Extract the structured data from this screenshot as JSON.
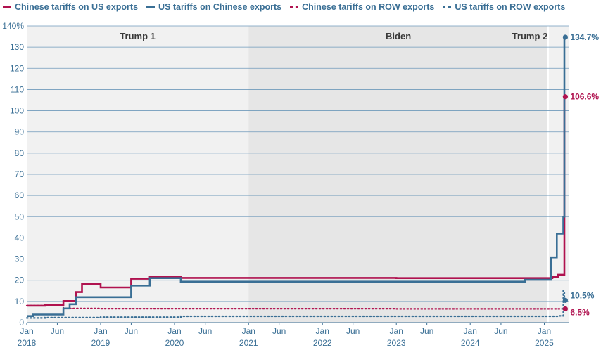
{
  "legend": [
    {
      "label": "Chinese tariffs on US exports",
      "color": "#b0124f",
      "style": "solid"
    },
    {
      "label": "US tariffs on Chinese exports",
      "color": "#3a6f95",
      "style": "solid"
    },
    {
      "label": "Chinese tariffs on ROW exports",
      "color": "#b0124f",
      "style": "dotted"
    },
    {
      "label": "US tariffs on ROW exports",
      "color": "#3a6f95",
      "style": "dotted"
    }
  ],
  "chart_data": {
    "type": "line",
    "line_shape": "step",
    "x_axis": {
      "range": [
        "2018-01-01",
        "2025-05-01"
      ],
      "ticks": [
        {
          "date": "2018-01-01",
          "label": "Jan",
          "sublabel": "2018"
        },
        {
          "date": "2018-06-01",
          "label": "Jun",
          "sublabel": ""
        },
        {
          "date": "2019-01-01",
          "label": "Jan",
          "sublabel": "2019"
        },
        {
          "date": "2019-06-01",
          "label": "Jun",
          "sublabel": ""
        },
        {
          "date": "2020-01-01",
          "label": "Jan",
          "sublabel": "2020"
        },
        {
          "date": "2020-06-01",
          "label": "Jun",
          "sublabel": ""
        },
        {
          "date": "2021-01-01",
          "label": "Jan",
          "sublabel": "2021"
        },
        {
          "date": "2021-06-01",
          "label": "Jun",
          "sublabel": ""
        },
        {
          "date": "2022-01-01",
          "label": "Jan",
          "sublabel": "2022"
        },
        {
          "date": "2022-06-01",
          "label": "Jun",
          "sublabel": ""
        },
        {
          "date": "2023-01-01",
          "label": "Jan",
          "sublabel": "2023"
        },
        {
          "date": "2023-06-01",
          "label": "Jun",
          "sublabel": ""
        },
        {
          "date": "2024-01-01",
          "label": "Jan",
          "sublabel": "2024"
        },
        {
          "date": "2024-06-01",
          "label": "Jun",
          "sublabel": ""
        },
        {
          "date": "2025-01-01",
          "label": "Jan",
          "sublabel": "2025"
        }
      ]
    },
    "y_axis": {
      "range": [
        0,
        140
      ],
      "ticks": [
        {
          "value": 0,
          "label": "0"
        },
        {
          "value": 10,
          "label": "10"
        },
        {
          "value": 20,
          "label": "20"
        },
        {
          "value": 30,
          "label": "30"
        },
        {
          "value": 40,
          "label": "40"
        },
        {
          "value": 50,
          "label": "50"
        },
        {
          "value": 60,
          "label": "60"
        },
        {
          "value": 70,
          "label": "70"
        },
        {
          "value": 80,
          "label": "80"
        },
        {
          "value": 90,
          "label": "90"
        },
        {
          "value": 100,
          "label": "100"
        },
        {
          "value": 110,
          "label": "110"
        },
        {
          "value": 120,
          "label": "120"
        },
        {
          "value": 130,
          "label": "130"
        },
        {
          "value": 140,
          "label": "140%"
        }
      ]
    },
    "grid": true,
    "periods": [
      {
        "label": "Trump 1",
        "start": "2018-01-01",
        "end": "2021-01-01",
        "color": "#f1f1f1"
      },
      {
        "label": "Biden",
        "start": "2021-01-01",
        "end": "2025-01-20",
        "color": "#e6e6e6"
      },
      {
        "label": "Trump 2",
        "start": "2025-01-20",
        "end": "2025-05-01",
        "color": "#f1f1f1"
      }
    ],
    "series": [
      {
        "name": "Chinese tariffs on US exports",
        "color": "#b0124f",
        "style": "solid",
        "end_label": "106.6%",
        "points": [
          [
            "2018-01-01",
            8.0
          ],
          [
            "2018-04-01",
            8.4
          ],
          [
            "2018-07-01",
            10.2
          ],
          [
            "2018-09-01",
            14.4
          ],
          [
            "2018-10-01",
            18.3
          ],
          [
            "2019-01-01",
            16.6
          ],
          [
            "2019-06-01",
            20.7
          ],
          [
            "2019-09-01",
            21.8
          ],
          [
            "2020-02-01",
            21.1
          ],
          [
            "2023-01-01",
            21.0
          ],
          [
            "2025-02-10",
            21.6
          ],
          [
            "2025-03-10",
            22.6
          ],
          [
            "2025-04-10",
            106.6
          ],
          [
            "2025-04-15",
            106.6
          ]
        ]
      },
      {
        "name": "US tariffs on Chinese exports",
        "color": "#3a6f95",
        "style": "solid",
        "end_label": "134.7%",
        "points": [
          [
            "2018-01-01",
            3.1
          ],
          [
            "2018-02-01",
            3.8
          ],
          [
            "2018-07-01",
            6.7
          ],
          [
            "2018-08-01",
            8.7
          ],
          [
            "2018-09-01",
            12.0
          ],
          [
            "2019-06-01",
            17.5
          ],
          [
            "2019-09-01",
            21.0
          ],
          [
            "2020-02-01",
            19.3
          ],
          [
            "2024-09-27",
            20.2
          ],
          [
            "2025-02-04",
            30.8
          ],
          [
            "2025-03-04",
            42.0
          ],
          [
            "2025-04-05",
            50.0
          ],
          [
            "2025-04-10",
            134.7
          ],
          [
            "2025-04-15",
            134.7
          ]
        ]
      },
      {
        "name": "Chinese tariffs on ROW exports",
        "color": "#b0124f",
        "style": "dotted",
        "end_label": "6.5%",
        "points": [
          [
            "2018-01-01",
            8.0
          ],
          [
            "2018-07-01",
            6.7
          ],
          [
            "2019-01-01",
            6.6
          ],
          [
            "2023-01-01",
            6.5
          ],
          [
            "2025-04-15",
            6.5
          ]
        ]
      },
      {
        "name": "US tariffs on ROW exports",
        "color": "#3a6f95",
        "style": "dotted",
        "end_label": "10.5%",
        "points": [
          [
            "2018-01-01",
            2.2
          ],
          [
            "2018-04-01",
            2.4
          ],
          [
            "2019-01-01",
            2.6
          ],
          [
            "2020-02-01",
            3.0
          ],
          [
            "2025-03-12",
            3.2
          ],
          [
            "2025-04-05",
            15.0
          ],
          [
            "2025-04-10",
            10.5
          ],
          [
            "2025-04-15",
            10.5
          ]
        ]
      }
    ]
  }
}
